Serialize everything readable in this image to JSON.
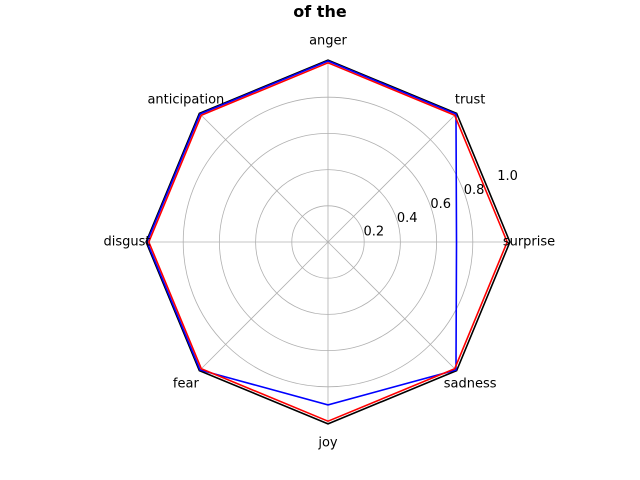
{
  "chart_data": {
    "type": "radar",
    "title": "of the",
    "categories": [
      "surprise",
      "trust",
      "anger",
      "anticipation",
      "disgust",
      "fear",
      "joy",
      "sadness"
    ],
    "radial_ticks": [
      "0.2",
      "0.4",
      "0.6",
      "0.8",
      "1.0"
    ],
    "rlim": [
      0,
      1.0
    ],
    "grid": true,
    "series": [
      {
        "color": "#000000",
        "values": [
          1.005,
          1.005,
          1.005,
          1.005,
          1.005,
          1.005,
          1.005,
          1.005
        ]
      },
      {
        "color": "#0000ff",
        "values": [
          0.71,
          1.0,
          1.0,
          1.0,
          1.0,
          1.0,
          0.9,
          1.0
        ]
      },
      {
        "color": "#ff0000",
        "values": [
          0.99,
          0.99,
          0.99,
          0.99,
          0.99,
          0.99,
          0.99,
          0.99
        ]
      }
    ]
  }
}
